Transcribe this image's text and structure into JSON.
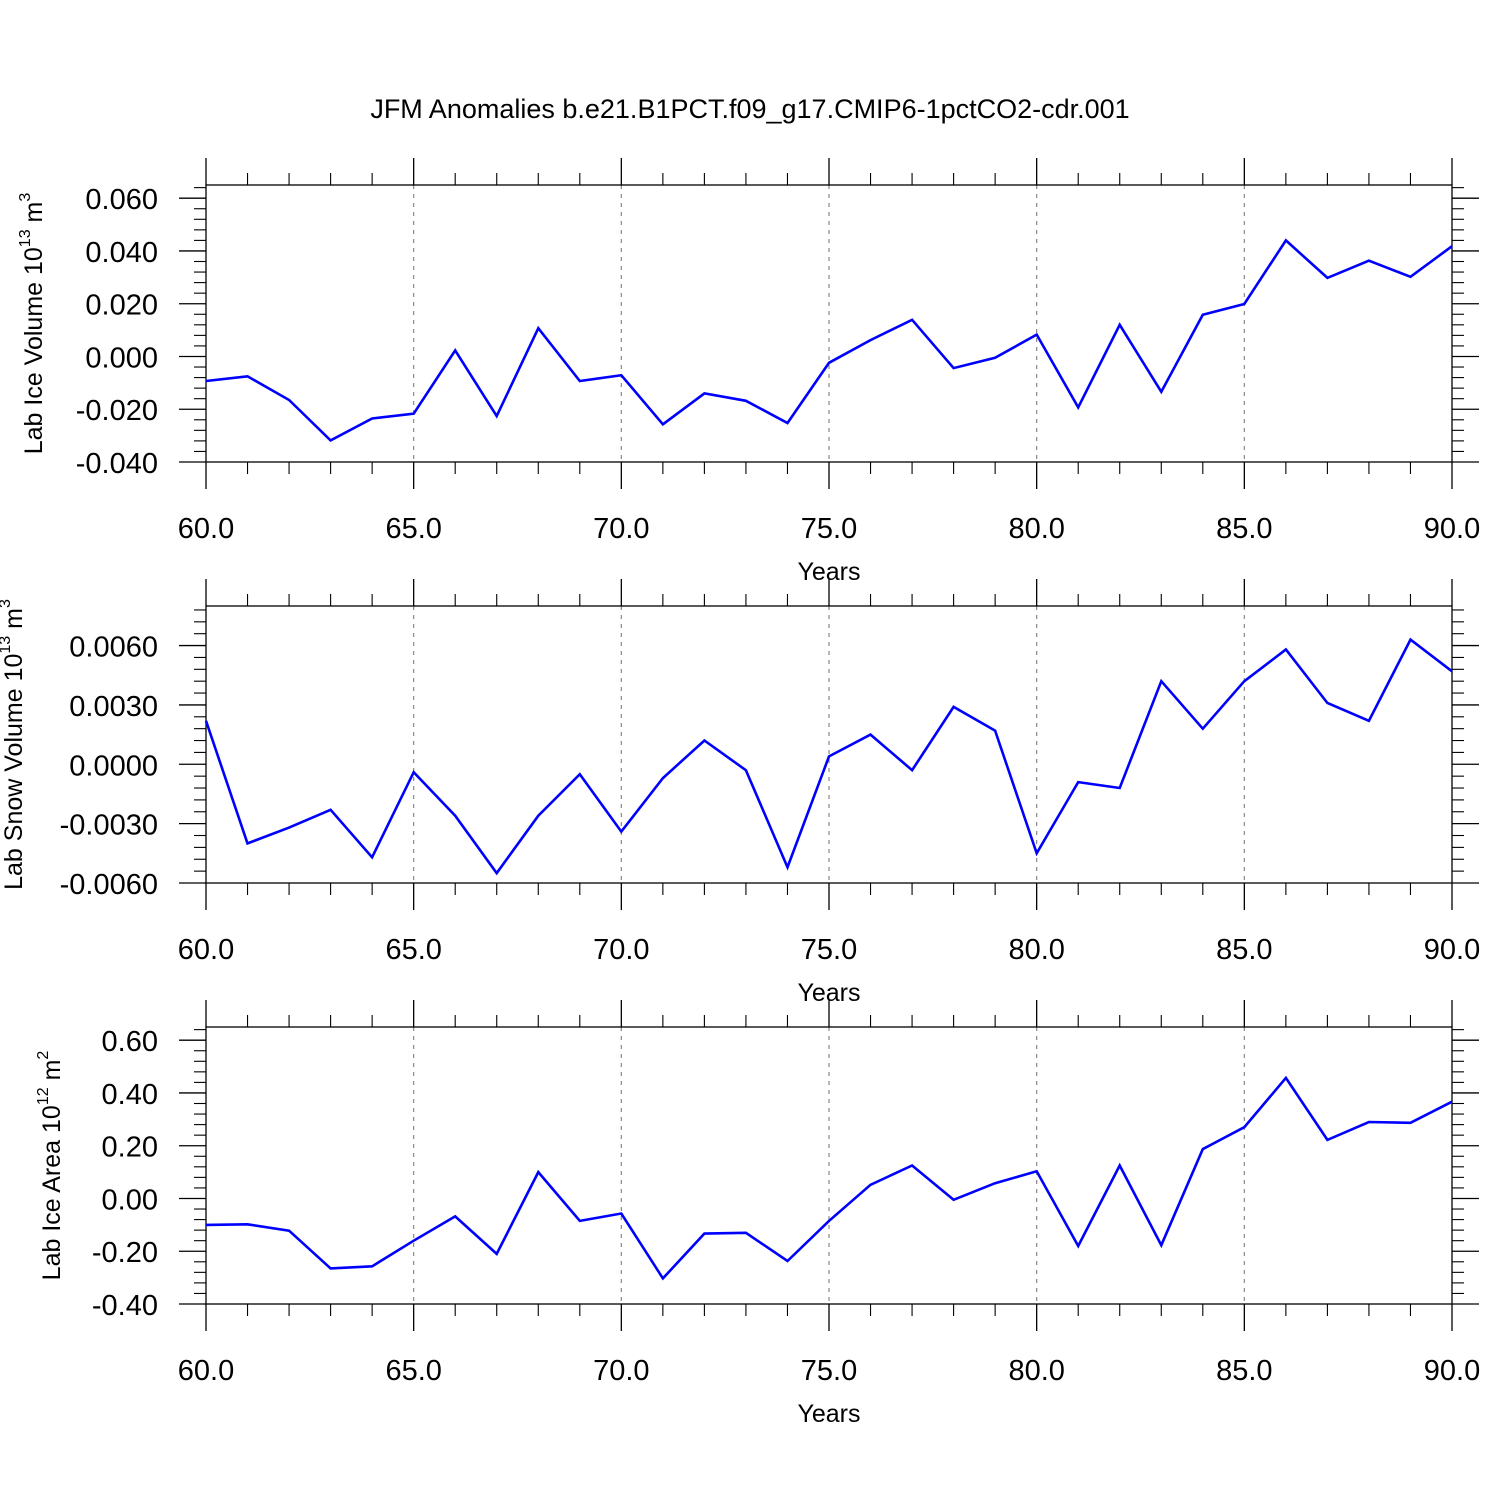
{
  "title": "JFM Anomalies b.e21.B1PCT.f09_g17.CMIP6-1pctCO2-cdr.001",
  "chart_data": [
    {
      "type": "line",
      "title": "",
      "xlabel": "Years",
      "ylabel": "Lab Ice Volume 10",
      "ylabel_sup1": "13",
      "ylabel_unit": " m",
      "ylabel_sup2": "3",
      "xlim": [
        60,
        90
      ],
      "ylim": [
        -0.04,
        0.065
      ],
      "xticks": [
        60,
        65,
        70,
        75,
        80,
        85,
        90
      ],
      "xtick_labels": [
        "60.0",
        "65.0",
        "70.0",
        "75.0",
        "80.0",
        "85.0",
        "90.0"
      ],
      "yticks": [
        -0.04,
        -0.02,
        0.0,
        0.02,
        0.04,
        0.06
      ],
      "ytick_labels": [
        "-0.040",
        "-0.020",
        "0.000",
        "0.020",
        "0.040",
        "0.060"
      ],
      "grid": "vertical dashed",
      "line_color": "#0000ff",
      "x": [
        60,
        61,
        62,
        63,
        64,
        65,
        66,
        67,
        68,
        69,
        70,
        71,
        72,
        73,
        74,
        75,
        76,
        77,
        78,
        79,
        80,
        81,
        82,
        83,
        84,
        85,
        86,
        87,
        88,
        89,
        90
      ],
      "y": [
        -0.0093,
        -0.0075,
        -0.0165,
        -0.0318,
        -0.0235,
        -0.0217,
        0.0023,
        -0.0226,
        0.0107,
        -0.0093,
        -0.0071,
        -0.0257,
        -0.014,
        -0.0168,
        -0.0252,
        -0.0024,
        0.0062,
        0.0139,
        -0.0044,
        -0.0005,
        0.0083,
        -0.0193,
        0.012,
        -0.0134,
        0.0158,
        0.0199,
        0.044,
        0.0298,
        0.0363,
        0.0302,
        0.0418
      ]
    },
    {
      "type": "line",
      "title": "",
      "xlabel": "Years",
      "ylabel": "Lab Snow Volume 10",
      "ylabel_sup1": "13",
      "ylabel_unit": " m",
      "ylabel_sup2": "3",
      "xlim": [
        60,
        90
      ],
      "ylim": [
        -0.006,
        0.008
      ],
      "xticks": [
        60,
        65,
        70,
        75,
        80,
        85,
        90
      ],
      "xtick_labels": [
        "60.0",
        "65.0",
        "70.0",
        "75.0",
        "80.0",
        "85.0",
        "90.0"
      ],
      "yticks": [
        -0.006,
        -0.003,
        0.0,
        0.003,
        0.006
      ],
      "ytick_labels": [
        "-0.0060",
        "-0.0030",
        "0.0000",
        "0.0030",
        "0.0060"
      ],
      "grid": "vertical dashed",
      "line_color": "#0000ff",
      "x": [
        60,
        61,
        62,
        63,
        64,
        65,
        66,
        67,
        68,
        69,
        70,
        71,
        72,
        73,
        74,
        75,
        76,
        77,
        78,
        79,
        80,
        81,
        82,
        83,
        84,
        85,
        86,
        87,
        88,
        89,
        90
      ],
      "y": [
        0.0022,
        -0.004,
        -0.0032,
        -0.0023,
        -0.0047,
        -0.0004,
        -0.0026,
        -0.0055,
        -0.0026,
        -0.0005,
        -0.0034,
        -0.0007,
        0.0012,
        -0.0003,
        -0.0052,
        0.0004,
        0.0015,
        -0.0003,
        0.0029,
        0.0017,
        -0.0045,
        -0.0009,
        -0.0012,
        0.0042,
        0.0018,
        0.0042,
        0.0058,
        0.0031,
        0.0022,
        0.0063,
        0.0047
      ]
    },
    {
      "type": "line",
      "title": "",
      "xlabel": "Years",
      "ylabel": "Lab Ice Area 10",
      "ylabel_sup1": "12",
      "ylabel_unit": " m",
      "ylabel_sup2": "2",
      "xlim": [
        60,
        90
      ],
      "ylim": [
        -0.4,
        0.65
      ],
      "xticks": [
        60,
        65,
        70,
        75,
        80,
        85,
        90
      ],
      "xtick_labels": [
        "60.0",
        "65.0",
        "70.0",
        "75.0",
        "80.0",
        "85.0",
        "90.0"
      ],
      "yticks": [
        -0.4,
        -0.2,
        0.0,
        0.2,
        0.4,
        0.6
      ],
      "ytick_labels": [
        "-0.40",
        "-0.20",
        "0.00",
        "0.20",
        "0.40",
        "0.60"
      ],
      "grid": "vertical dashed",
      "line_color": "#0000ff",
      "x": [
        60,
        61,
        62,
        63,
        64,
        65,
        66,
        67,
        68,
        69,
        70,
        71,
        72,
        73,
        74,
        75,
        76,
        77,
        78,
        79,
        80,
        81,
        82,
        83,
        84,
        85,
        86,
        87,
        88,
        89,
        90
      ],
      "y": [
        -0.1,
        -0.098,
        -0.122,
        -0.265,
        -0.257,
        -0.16,
        -0.068,
        -0.21,
        0.1,
        -0.085,
        -0.057,
        -0.303,
        -0.133,
        -0.13,
        -0.237,
        -0.085,
        0.052,
        0.125,
        -0.005,
        0.058,
        0.103,
        -0.18,
        0.125,
        -0.177,
        0.187,
        0.27,
        0.457,
        0.222,
        0.29,
        0.287,
        0.367
      ]
    }
  ]
}
